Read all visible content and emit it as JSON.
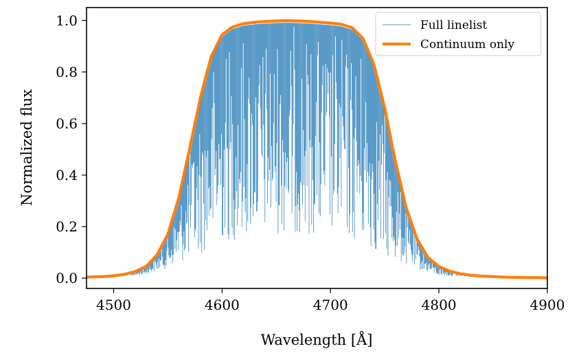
{
  "chart_data": {
    "type": "line",
    "title": "",
    "xlabel": "Wavelength [Å]",
    "ylabel": "Normalized flux",
    "xlim": [
      4475,
      4900
    ],
    "ylim": [
      -0.04,
      1.05
    ],
    "grid": false,
    "legend_position": "top-right",
    "x_ticks": [
      {
        "value": 4500,
        "label": "4500"
      },
      {
        "value": 4600,
        "label": "4600"
      },
      {
        "value": 4700,
        "label": "4700"
      },
      {
        "value": 4800,
        "label": "4800"
      },
      {
        "value": 4900,
        "label": "4900"
      }
    ],
    "y_ticks": [
      {
        "value": 0.0,
        "label": "0.0"
      },
      {
        "value": 0.2,
        "label": "0.2"
      },
      {
        "value": 0.4,
        "label": "0.4"
      },
      {
        "value": 0.6,
        "label": "0.6"
      },
      {
        "value": 0.8,
        "label": "0.8"
      },
      {
        "value": 1.0,
        "label": "1.0"
      }
    ],
    "series": [
      {
        "name": "Full linelist",
        "color": "#1f77b4",
        "style": "thin",
        "description": "continuum multiplied by many narrow absorption lines (approximate)",
        "line_count": 700,
        "x": [
          4475,
          4500,
          4525,
          4550,
          4575,
          4600,
          4625,
          4650,
          4675,
          4700,
          4725,
          4750,
          4775,
          4800,
          4825,
          4850,
          4875,
          4900
        ],
        "y_envelope_min": [
          0.003,
          0.006,
          0.01,
          0.04,
          0.08,
          0.13,
          0.16,
          0.17,
          0.17,
          0.16,
          0.13,
          0.08,
          0.04,
          0.01,
          0.006,
          0.004,
          0.002,
          0.001
        ]
      },
      {
        "name": "Continuum only",
        "color": "#ff7f0e",
        "style": "thick",
        "x": [
          4475,
          4490,
          4500,
          4510,
          4520,
          4530,
          4540,
          4550,
          4560,
          4570,
          4580,
          4590,
          4600,
          4610,
          4620,
          4630,
          4640,
          4650,
          4660,
          4670,
          4680,
          4690,
          4700,
          4710,
          4720,
          4730,
          4740,
          4750,
          4760,
          4770,
          4780,
          4790,
          4800,
          4810,
          4820,
          4830,
          4840,
          4850,
          4860,
          4870,
          4880,
          4890,
          4900
        ],
        "y": [
          0.004,
          0.006,
          0.009,
          0.015,
          0.026,
          0.046,
          0.09,
          0.17,
          0.31,
          0.5,
          0.7,
          0.86,
          0.945,
          0.975,
          0.988,
          0.993,
          0.996,
          0.998,
          0.999,
          0.998,
          0.996,
          0.993,
          0.99,
          0.985,
          0.972,
          0.93,
          0.83,
          0.66,
          0.45,
          0.27,
          0.15,
          0.08,
          0.045,
          0.027,
          0.017,
          0.011,
          0.008,
          0.006,
          0.004,
          0.003,
          0.002,
          0.002,
          0.001
        ]
      }
    ]
  }
}
